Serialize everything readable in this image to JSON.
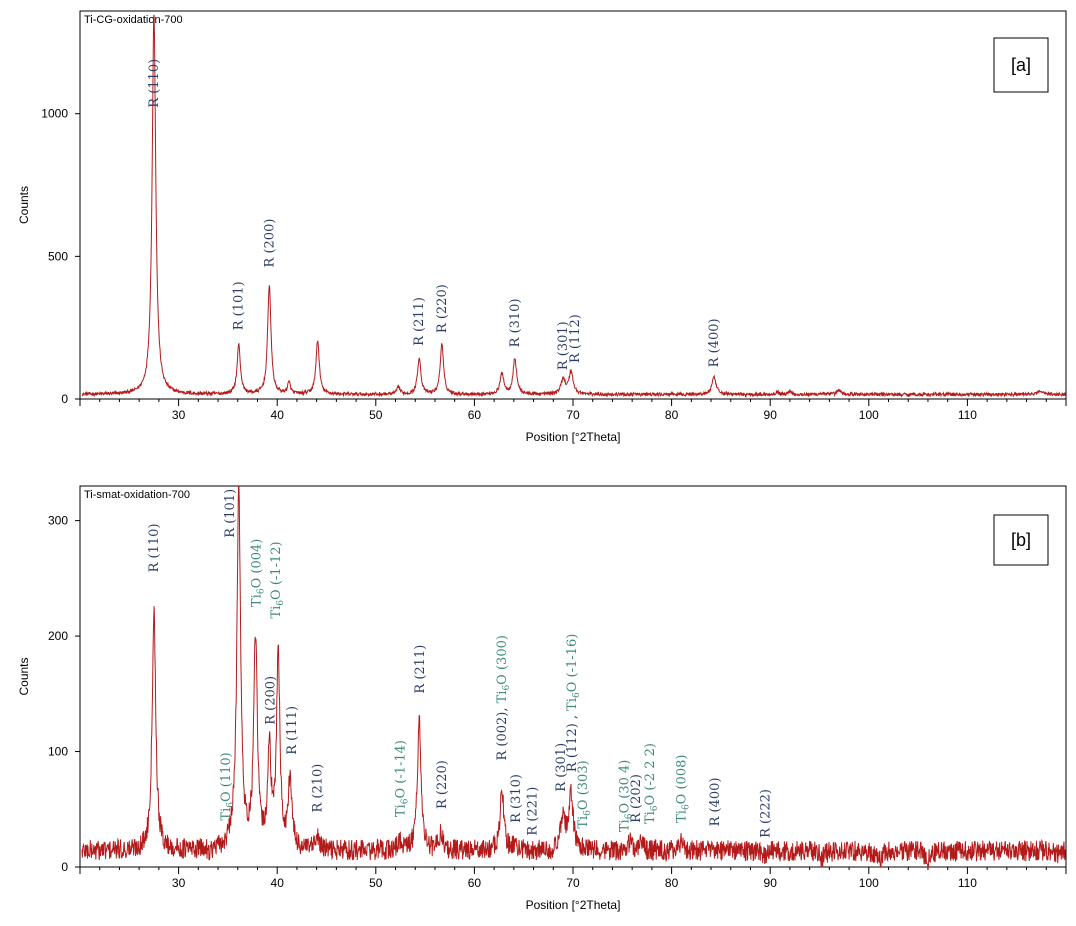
{
  "colors": {
    "trace": "#b31b1b",
    "rutile": "#2d3e66",
    "ti6o": "#3e8a7a",
    "axis": "#000000"
  },
  "chart_data": [
    {
      "type": "line",
      "title": "Ti-CG-oxidation-700",
      "tag": "[a]",
      "xlabel": "Position [°2Theta]",
      "ylabel": "Counts",
      "xlim": [
        20,
        120
      ],
      "ylim": [
        0,
        1360
      ],
      "xticks": [
        30,
        40,
        50,
        60,
        70,
        80,
        90,
        100,
        110
      ],
      "yticks": [
        0,
        500,
        1000
      ],
      "noise": {
        "level": 16,
        "amp": 6
      },
      "peaks": [
        {
          "x": 27.5,
          "y": 1360,
          "w": 0.22
        },
        {
          "x": 36.1,
          "y": 190,
          "w": 0.2
        },
        {
          "x": 39.2,
          "y": 400,
          "w": 0.2
        },
        {
          "x": 41.2,
          "y": 55,
          "w": 0.18
        },
        {
          "x": 44.1,
          "y": 205,
          "w": 0.2
        },
        {
          "x": 52.3,
          "y": 40,
          "w": 0.2
        },
        {
          "x": 54.4,
          "y": 145,
          "w": 0.2
        },
        {
          "x": 56.7,
          "y": 195,
          "w": 0.2
        },
        {
          "x": 62.8,
          "y": 90,
          "w": 0.22
        },
        {
          "x": 64.1,
          "y": 140,
          "w": 0.22
        },
        {
          "x": 69.0,
          "y": 70,
          "w": 0.25
        },
        {
          "x": 69.8,
          "y": 95,
          "w": 0.25
        },
        {
          "x": 84.3,
          "y": 75,
          "w": 0.25
        },
        {
          "x": 90.7,
          "y": 25,
          "w": 0.2
        },
        {
          "x": 92.0,
          "y": 30,
          "w": 0.15
        },
        {
          "x": 95.2,
          "y": 20,
          "w": 0.2
        },
        {
          "x": 97.0,
          "y": 30,
          "w": 0.25
        },
        {
          "x": 117.5,
          "y": 28,
          "w": 0.35
        }
      ],
      "annotations": [
        {
          "x": 27.5,
          "y": 1000,
          "label": "R (110)",
          "phase": "rutile"
        },
        {
          "x": 36.1,
          "y": 220,
          "label": "R (101)",
          "phase": "rutile"
        },
        {
          "x": 39.2,
          "y": 440,
          "label": "R (200)",
          "phase": "rutile"
        },
        {
          "x": 54.4,
          "y": 165,
          "label": "R (211)",
          "phase": "rutile"
        },
        {
          "x": 56.7,
          "y": 210,
          "label": "R (220)",
          "phase": "rutile"
        },
        {
          "x": 64.1,
          "y": 160,
          "label": "R (310)",
          "phase": "rutile"
        },
        {
          "x": 69.0,
          "y": 80,
          "label": "R (301)",
          "phase": "rutile"
        },
        {
          "x": 70.2,
          "y": 105,
          "label": "R (112)",
          "phase": "rutile"
        },
        {
          "x": 84.3,
          "y": 90,
          "label": "R (400)",
          "phase": "rutile"
        }
      ]
    },
    {
      "type": "line",
      "title": "Ti-smat-oxidation-700",
      "tag": "[b]",
      "xlabel": "Position [°2Theta]",
      "ylabel": "Counts",
      "xlim": [
        20,
        120
      ],
      "ylim": [
        0,
        330
      ],
      "xticks": [
        30,
        40,
        50,
        60,
        70,
        80,
        90,
        100,
        110
      ],
      "yticks": [
        0,
        100,
        200,
        300
      ],
      "noise": {
        "level": 14,
        "amp": 9
      },
      "peaks": [
        {
          "x": 27.5,
          "y": 225,
          "w": 0.22
        },
        {
          "x": 33.2,
          "y": 12,
          "w": 0.25
        },
        {
          "x": 35.3,
          "y": 18,
          "w": 0.25
        },
        {
          "x": 36.1,
          "y": 335,
          "w": 0.22
        },
        {
          "x": 37.8,
          "y": 195,
          "w": 0.22
        },
        {
          "x": 39.2,
          "y": 100,
          "w": 0.2
        },
        {
          "x": 40.1,
          "y": 185,
          "w": 0.2
        },
        {
          "x": 41.3,
          "y": 75,
          "w": 0.22
        },
        {
          "x": 44.1,
          "y": 25,
          "w": 0.22
        },
        {
          "x": 52.4,
          "y": 22,
          "w": 0.22
        },
        {
          "x": 54.4,
          "y": 128,
          "w": 0.22
        },
        {
          "x": 56.6,
          "y": 30,
          "w": 0.22
        },
        {
          "x": 62.8,
          "y": 68,
          "w": 0.22
        },
        {
          "x": 64.1,
          "y": 20,
          "w": 0.22
        },
        {
          "x": 69.0,
          "y": 47,
          "w": 0.25
        },
        {
          "x": 69.8,
          "y": 62,
          "w": 0.25
        },
        {
          "x": 75.8,
          "y": 22,
          "w": 0.25
        },
        {
          "x": 76.9,
          "y": 22,
          "w": 0.25
        },
        {
          "x": 81.0,
          "y": 22,
          "w": 0.3
        },
        {
          "x": 84.3,
          "y": 15,
          "w": 0.25
        },
        {
          "x": 89.5,
          "y": 10,
          "w": 0.25
        },
        {
          "x": 95.3,
          "y": 8,
          "w": 0.3
        },
        {
          "x": 101.0,
          "y": 6,
          "w": 0.3
        },
        {
          "x": 106.0,
          "y": 6,
          "w": 0.3
        },
        {
          "x": 108.2,
          "y": 12,
          "w": 0.3
        },
        {
          "x": 119.2,
          "y": 12,
          "w": 0.35
        }
      ],
      "annotations": [
        {
          "x": 27.5,
          "y": 250,
          "label": "R (110)",
          "phase": "rutile"
        },
        {
          "x": 34.8,
          "y": 35,
          "label": "Ti6O (110)",
          "phase": "ti6o"
        },
        {
          "x": 35.2,
          "y": 280,
          "label": "R (101)",
          "phase": "rutile"
        },
        {
          "x": 37.9,
          "y": 220,
          "label": "Ti6O (004)",
          "phase": "ti6o"
        },
        {
          "x": 39.3,
          "y": 118,
          "label": "R (200)",
          "phase": "rutile"
        },
        {
          "x": 39.9,
          "y": 210,
          "label": "Ti6O (-1-12)",
          "phase": "ti6o"
        },
        {
          "x": 41.5,
          "y": 92,
          "label": "R (111)",
          "phase": "rutile"
        },
        {
          "x": 44.1,
          "y": 42,
          "label": "R (210)",
          "phase": "rutile"
        },
        {
          "x": 52.5,
          "y": 38,
          "label": "Ti6O (-1-14)",
          "phase": "ti6o"
        },
        {
          "x": 54.5,
          "y": 145,
          "label": "R (211)",
          "phase": "rutile"
        },
        {
          "x": 56.7,
          "y": 45,
          "label": "R (220)",
          "phase": "rutile"
        },
        {
          "x": 62.8,
          "y": 87,
          "label": "R (002), Ti6O (300)",
          "phase": "mixed"
        },
        {
          "x": 64.2,
          "y": 33,
          "label": "R (310)",
          "phase": "rutile"
        },
        {
          "x": 65.9,
          "y": 22,
          "label": "R (221)",
          "phase": "rutile"
        },
        {
          "x": 68.8,
          "y": 60,
          "label": "R (301)",
          "phase": "rutile"
        },
        {
          "x": 69.9,
          "y": 77,
          "label": "R (112) , Ti6O (-1-16)",
          "phase": "mixed"
        },
        {
          "x": 71.0,
          "y": 28,
          "label": "Ti6O (303)",
          "phase": "ti6o"
        },
        {
          "x": 75.2,
          "y": 25,
          "label": "Ti6O (30 4)",
          "phase": "ti6o"
        },
        {
          "x": 76.4,
          "y": 33,
          "label": "R (202)",
          "phase": "rutile"
        },
        {
          "x": 77.8,
          "y": 32,
          "label": "Ti6O (-2 2 2)",
          "phase": "ti6o"
        },
        {
          "x": 81.0,
          "y": 33,
          "label": "Ti6O (008)",
          "phase": "ti6o"
        },
        {
          "x": 84.4,
          "y": 30,
          "label": "R (400)",
          "phase": "rutile"
        },
        {
          "x": 89.5,
          "y": 20,
          "label": "R (222)",
          "phase": "rutile"
        }
      ]
    }
  ]
}
